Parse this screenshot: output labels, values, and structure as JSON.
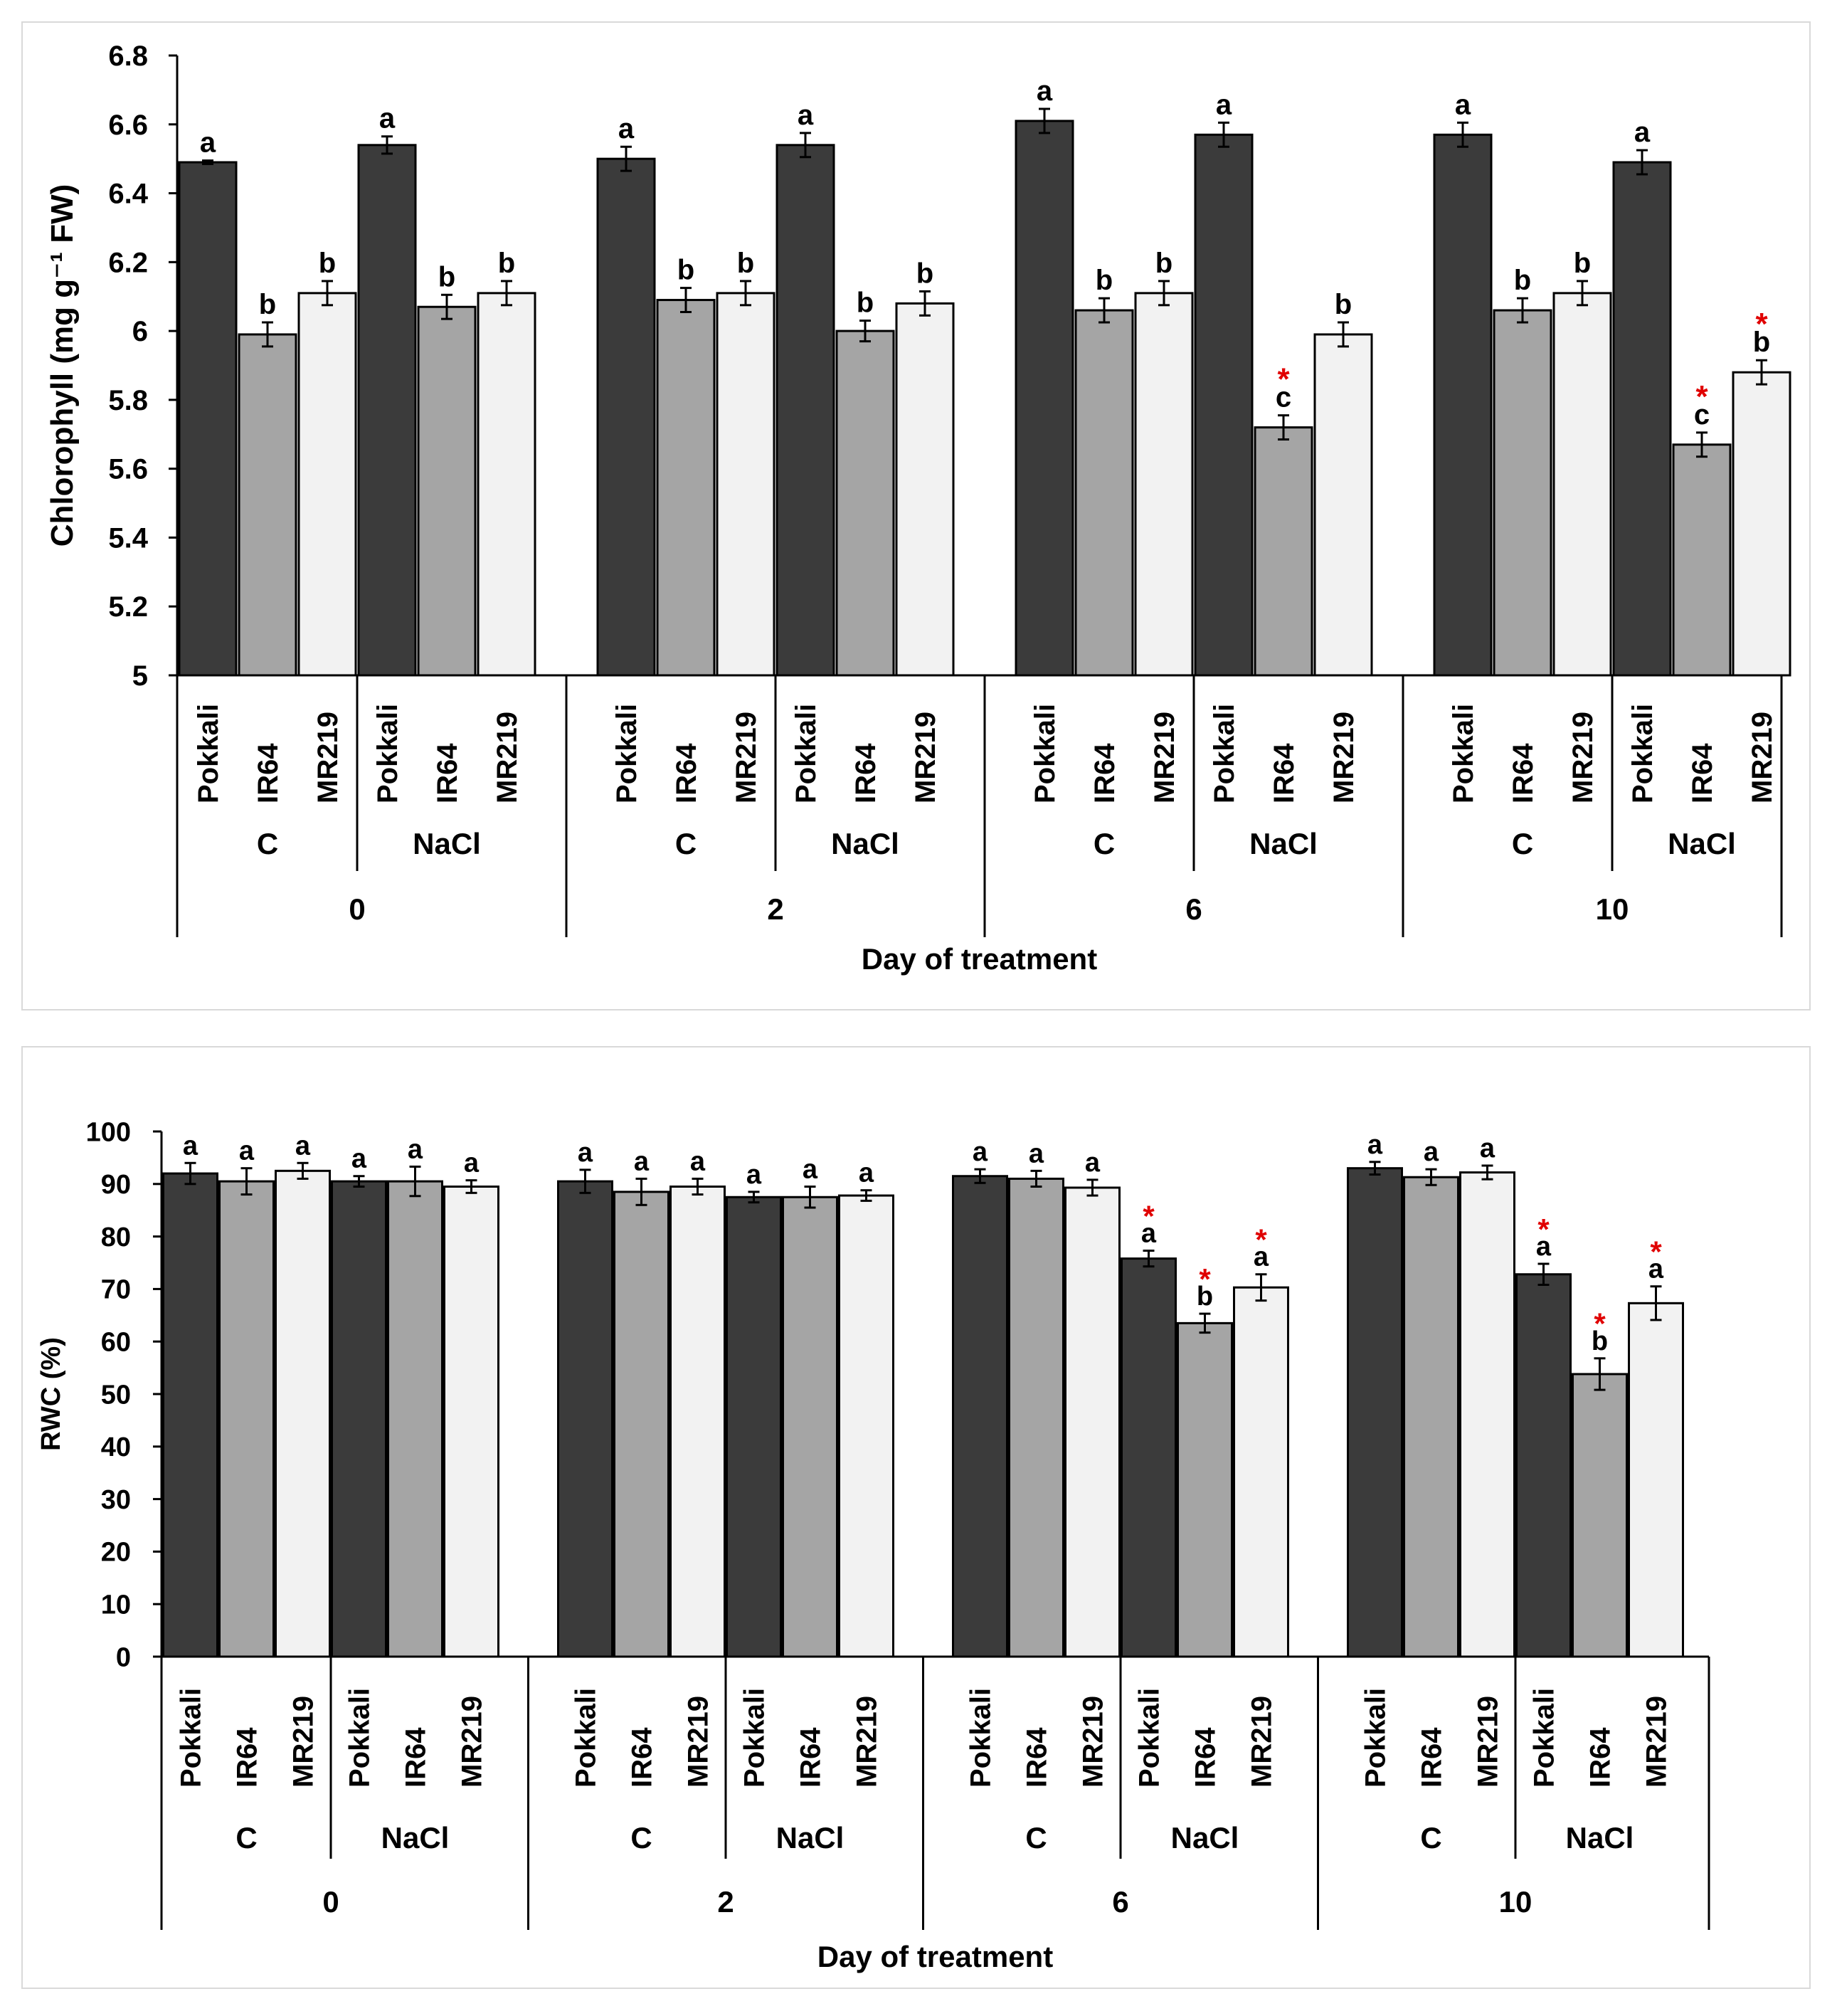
{
  "colors": {
    "Pokkali": "#3b3b3b",
    "IR64": "#a5a5a5",
    "MR219": "#f2f2f2",
    "star": "#e00000",
    "axis": "#000000"
  },
  "chart_data": [
    {
      "type": "bar",
      "ylabel": "Chlorophyll (mg g⁻¹ FW)",
      "xlabel": "Day of treatment",
      "ylim": [
        5,
        6.8
      ],
      "yticks": [
        "5",
        "5.2",
        "5.4",
        "5.6",
        "5.8",
        "6",
        "6.2",
        "6.4",
        "6.6",
        "6.8"
      ],
      "groups": [
        {
          "day": "0",
          "subgroups": [
            {
              "treatment": "C",
              "bars": [
                {
                  "cultivar": "Pokkali",
                  "value": 6.49,
                  "err": 0.005,
                  "letter": "a",
                  "star": false
                },
                {
                  "cultivar": "IR64",
                  "value": 5.99,
                  "err": 0.035,
                  "letter": "b",
                  "star": false
                },
                {
                  "cultivar": "MR219",
                  "value": 6.11,
                  "err": 0.035,
                  "letter": "b",
                  "star": false
                }
              ]
            },
            {
              "treatment": "NaCl",
              "bars": [
                {
                  "cultivar": "Pokkali",
                  "value": 6.54,
                  "err": 0.025,
                  "letter": "a",
                  "star": false
                },
                {
                  "cultivar": "IR64",
                  "value": 6.07,
                  "err": 0.035,
                  "letter": "b",
                  "star": false
                },
                {
                  "cultivar": "MR219",
                  "value": 6.11,
                  "err": 0.035,
                  "letter": "b",
                  "star": false
                }
              ]
            }
          ]
        },
        {
          "day": "2",
          "subgroups": [
            {
              "treatment": "C",
              "bars": [
                {
                  "cultivar": "Pokkali",
                  "value": 6.5,
                  "err": 0.035,
                  "letter": "a",
                  "star": false
                },
                {
                  "cultivar": "IR64",
                  "value": 6.09,
                  "err": 0.035,
                  "letter": "b",
                  "star": false
                },
                {
                  "cultivar": "MR219",
                  "value": 6.11,
                  "err": 0.035,
                  "letter": "b",
                  "star": false
                }
              ]
            },
            {
              "treatment": "NaCl",
              "bars": [
                {
                  "cultivar": "Pokkali",
                  "value": 6.54,
                  "err": 0.035,
                  "letter": "a",
                  "star": false
                },
                {
                  "cultivar": "IR64",
                  "value": 6.0,
                  "err": 0.03,
                  "letter": "b",
                  "star": false
                },
                {
                  "cultivar": "MR219",
                  "value": 6.08,
                  "err": 0.035,
                  "letter": "b",
                  "star": false
                }
              ]
            }
          ]
        },
        {
          "day": "6",
          "subgroups": [
            {
              "treatment": "C",
              "bars": [
                {
                  "cultivar": "Pokkali",
                  "value": 6.61,
                  "err": 0.035,
                  "letter": "a",
                  "star": false
                },
                {
                  "cultivar": "IR64",
                  "value": 6.06,
                  "err": 0.035,
                  "letter": "b",
                  "star": false
                },
                {
                  "cultivar": "MR219",
                  "value": 6.11,
                  "err": 0.035,
                  "letter": "b",
                  "star": false
                }
              ]
            },
            {
              "treatment": "NaCl",
              "bars": [
                {
                  "cultivar": "Pokkali",
                  "value": 6.57,
                  "err": 0.035,
                  "letter": "a",
                  "star": false
                },
                {
                  "cultivar": "IR64",
                  "value": 5.72,
                  "err": 0.035,
                  "letter": "c",
                  "star": true
                },
                {
                  "cultivar": "MR219",
                  "value": 5.99,
                  "err": 0.035,
                  "letter": "b",
                  "star": false
                }
              ]
            }
          ]
        },
        {
          "day": "10",
          "subgroups": [
            {
              "treatment": "C",
              "bars": [
                {
                  "cultivar": "Pokkali",
                  "value": 6.57,
                  "err": 0.035,
                  "letter": "a",
                  "star": false
                },
                {
                  "cultivar": "IR64",
                  "value": 6.06,
                  "err": 0.035,
                  "letter": "b",
                  "star": false
                },
                {
                  "cultivar": "MR219",
                  "value": 6.11,
                  "err": 0.035,
                  "letter": "b",
                  "star": false
                }
              ]
            },
            {
              "treatment": "NaCl",
              "bars": [
                {
                  "cultivar": "Pokkali",
                  "value": 6.49,
                  "err": 0.035,
                  "letter": "a",
                  "star": false
                },
                {
                  "cultivar": "IR64",
                  "value": 5.67,
                  "err": 0.035,
                  "letter": "c",
                  "star": true
                },
                {
                  "cultivar": "MR219",
                  "value": 5.88,
                  "err": 0.035,
                  "letter": "b",
                  "star": true
                }
              ]
            }
          ]
        }
      ]
    },
    {
      "type": "bar",
      "ylabel": "RWC (%)",
      "xlabel": "Day of treatment",
      "ylim": [
        0,
        100
      ],
      "yticks": [
        "0",
        "10",
        "20",
        "30",
        "40",
        "50",
        "60",
        "70",
        "80",
        "90",
        "100"
      ],
      "groups": [
        {
          "day": "0",
          "subgroups": [
            {
              "treatment": "C",
              "bars": [
                {
                  "cultivar": "Pokkali",
                  "value": 92,
                  "err": 2.0,
                  "letter": "a",
                  "star": false
                },
                {
                  "cultivar": "IR64",
                  "value": 90.5,
                  "err": 2.5,
                  "letter": "a",
                  "star": false
                },
                {
                  "cultivar": "MR219",
                  "value": 92.5,
                  "err": 1.5,
                  "letter": "a",
                  "star": false
                }
              ]
            },
            {
              "treatment": "NaCl",
              "bars": [
                {
                  "cultivar": "Pokkali",
                  "value": 90.5,
                  "err": 1.0,
                  "letter": "a",
                  "star": false
                },
                {
                  "cultivar": "IR64",
                  "value": 90.5,
                  "err": 2.8,
                  "letter": "a",
                  "star": false
                },
                {
                  "cultivar": "MR219",
                  "value": 89.5,
                  "err": 1.2,
                  "letter": "a",
                  "star": false
                }
              ]
            }
          ]
        },
        {
          "day": "2",
          "subgroups": [
            {
              "treatment": "C",
              "bars": [
                {
                  "cultivar": "Pokkali",
                  "value": 90.5,
                  "err": 2.2,
                  "letter": "a",
                  "star": false
                },
                {
                  "cultivar": "IR64",
                  "value": 88.5,
                  "err": 2.5,
                  "letter": "a",
                  "star": false
                },
                {
                  "cultivar": "MR219",
                  "value": 89.5,
                  "err": 1.5,
                  "letter": "a",
                  "star": false
                }
              ]
            },
            {
              "treatment": "NaCl",
              "bars": [
                {
                  "cultivar": "Pokkali",
                  "value": 87.5,
                  "err": 1.0,
                  "letter": "a",
                  "star": false
                },
                {
                  "cultivar": "IR64",
                  "value": 87.5,
                  "err": 2.0,
                  "letter": "a",
                  "star": false
                },
                {
                  "cultivar": "MR219",
                  "value": 87.8,
                  "err": 1.0,
                  "letter": "a",
                  "star": false
                }
              ]
            }
          ]
        },
        {
          "day": "6",
          "subgroups": [
            {
              "treatment": "C",
              "bars": [
                {
                  "cultivar": "Pokkali",
                  "value": 91.5,
                  "err": 1.3,
                  "letter": "a",
                  "star": false
                },
                {
                  "cultivar": "IR64",
                  "value": 91,
                  "err": 1.5,
                  "letter": "a",
                  "star": false
                },
                {
                  "cultivar": "MR219",
                  "value": 89.3,
                  "err": 1.5,
                  "letter": "a",
                  "star": false
                }
              ]
            },
            {
              "treatment": "NaCl",
              "bars": [
                {
                  "cultivar": "Pokkali",
                  "value": 75.8,
                  "err": 1.5,
                  "letter": "a",
                  "star": true
                },
                {
                  "cultivar": "IR64",
                  "value": 63.5,
                  "err": 1.8,
                  "letter": "b",
                  "star": true
                },
                {
                  "cultivar": "MR219",
                  "value": 70.3,
                  "err": 2.5,
                  "letter": "a",
                  "star": true
                }
              ]
            }
          ]
        },
        {
          "day": "10",
          "subgroups": [
            {
              "treatment": "C",
              "bars": [
                {
                  "cultivar": "Pokkali",
                  "value": 93,
                  "err": 1.2,
                  "letter": "a",
                  "star": false
                },
                {
                  "cultivar": "IR64",
                  "value": 91.3,
                  "err": 1.5,
                  "letter": "a",
                  "star": false
                },
                {
                  "cultivar": "MR219",
                  "value": 92.2,
                  "err": 1.3,
                  "letter": "a",
                  "star": false
                }
              ]
            },
            {
              "treatment": "NaCl",
              "bars": [
                {
                  "cultivar": "Pokkali",
                  "value": 72.8,
                  "err": 2.0,
                  "letter": "a",
                  "star": true
                },
                {
                  "cultivar": "IR64",
                  "value": 53.8,
                  "err": 3.0,
                  "letter": "b",
                  "star": true
                },
                {
                  "cultivar": "MR219",
                  "value": 67.3,
                  "err": 3.2,
                  "letter": "a",
                  "star": true
                }
              ]
            }
          ]
        }
      ]
    }
  ]
}
